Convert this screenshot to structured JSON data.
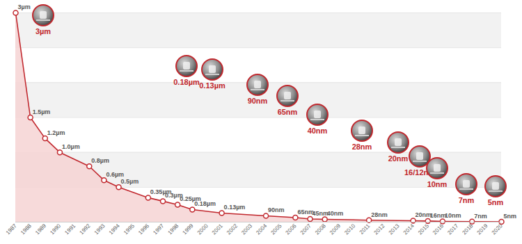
{
  "chart_data": {
    "type": "line",
    "x": [
      1987,
      1988,
      1989,
      1990,
      1992,
      1993,
      1994,
      1996,
      1997,
      1998,
      1999,
      2001,
      2004,
      2006,
      2007,
      2008,
      2011,
      2014,
      2015,
      2016,
      2018,
      2020
    ],
    "values": [
      3,
      1.5,
      1.2,
      1.0,
      0.8,
      0.6,
      0.5,
      0.35,
      0.3,
      0.25,
      0.18,
      0.13,
      0.09,
      0.065,
      0.045,
      0.04,
      0.028,
      0.02,
      0.016,
      0.01,
      0.007,
      0.005
    ],
    "value_labels": [
      "3µm",
      "1.5µm",
      "1.2µm",
      "1.0µm",
      "0.8µm",
      "0.6µm",
      "0.5µm",
      "0.35µm",
      "0.3µm",
      "0.25µm",
      "0.18µm",
      "0.13µm",
      "90nm",
      "65nm",
      "45nm",
      "40nm",
      "28nm",
      "20nm",
      "16nm",
      "10nm",
      "7nm",
      "5nm"
    ],
    "data_labels": true,
    "color": "#c1272d",
    "marker": "circle",
    "xlim": [
      1987,
      2020
    ],
    "xticks": [
      1987,
      1988,
      1989,
      1990,
      1991,
      1992,
      1993,
      1994,
      1995,
      1996,
      1997,
      1998,
      1999,
      2000,
      2001,
      2002,
      2003,
      2004,
      2005,
      2006,
      2007,
      2008,
      2009,
      2010,
      2011,
      2012,
      2013,
      2014,
      2015,
      2016,
      2017,
      2018,
      2019,
      2020
    ],
    "ylim": [
      0,
      3
    ],
    "yticks": [
      0,
      0.5,
      1,
      1.5,
      2,
      2.5,
      3
    ],
    "grid": true,
    "tick_labels": "x",
    "annotations": [
      "3µm",
      "0.18µm",
      "0.13µm",
      "90nm",
      "65nm",
      "40nm",
      "28nm",
      "20nm",
      "16/12nm",
      "10nm",
      "7nm",
      "5nm"
    ]
  }
}
